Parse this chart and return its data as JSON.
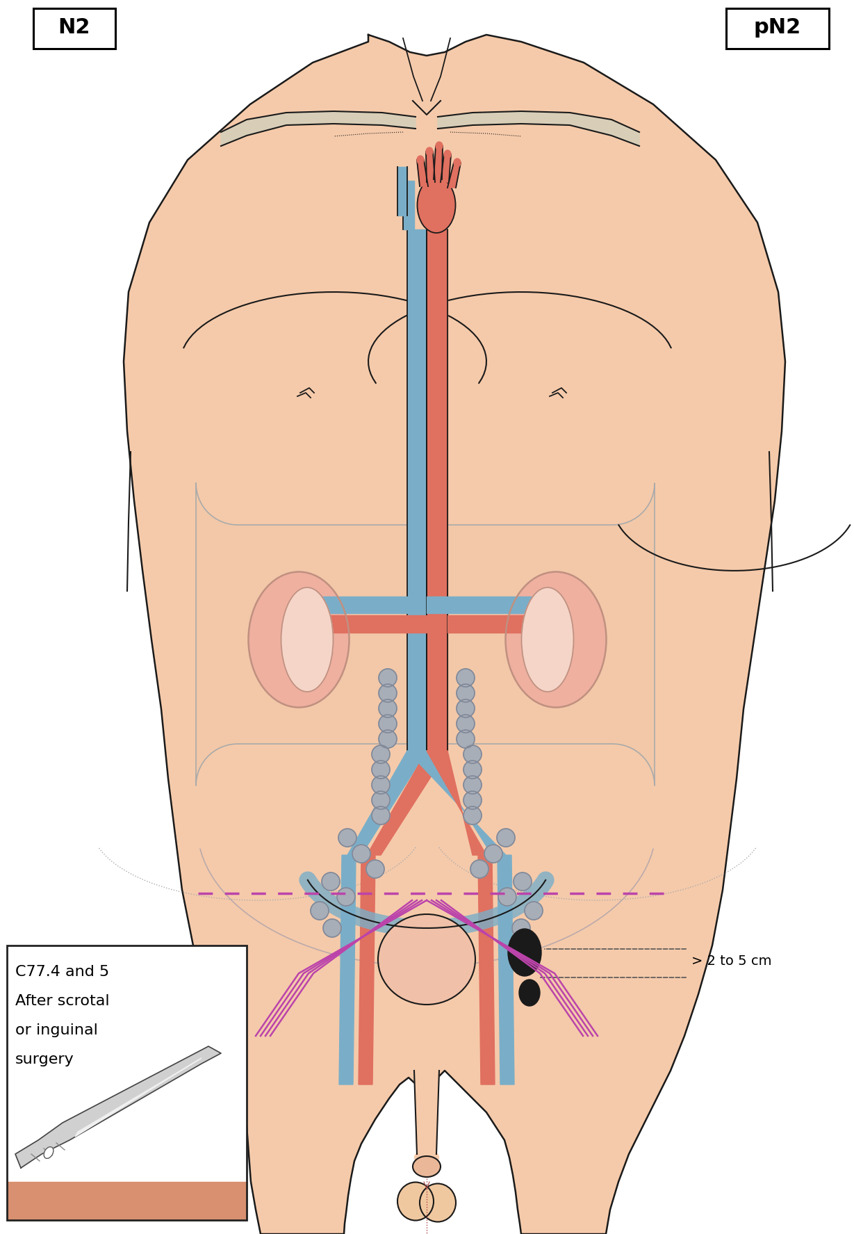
{
  "title_left": "N2",
  "title_right": "pN2",
  "label_size": "> 2 to 5 cm",
  "inset_line1": "C77.4 and 5",
  "inset_line2": "After scrotal",
  "inset_line3": "or inguinal",
  "inset_line4": "surgery",
  "skin_color": "#F5CAAA",
  "skin_outline": "#1a1a1a",
  "aorta_color": "#E07060",
  "vena_color": "#7AAEC8",
  "kidney_color": "#EFB0A0",
  "node_color": "#A8AEB8",
  "node_outline": "#808898",
  "large_node_color": "#1a1a1a",
  "dashed_color": "#BB44AA",
  "ann_line_color": "#555555",
  "abdom_region_color": "#F0C8A8",
  "abdom_alpha": 0.55,
  "collarbone_color": "#D8CEB8",
  "inset_skin": "#D89070",
  "bladder_color": "#F0C0A8",
  "pelvis_color": "#F0C8B0"
}
